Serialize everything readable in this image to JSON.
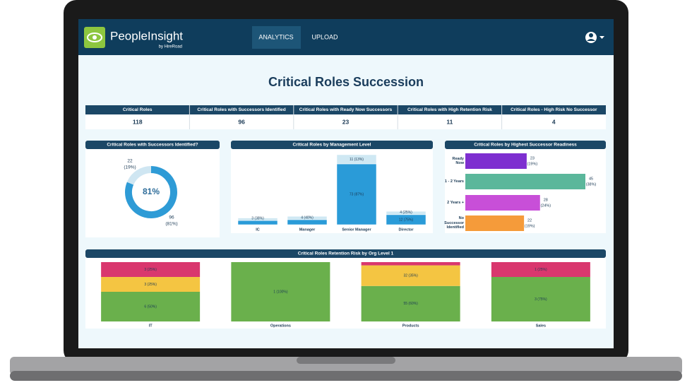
{
  "nav": {
    "brand": "PeopleInsight",
    "brand_sub": "by HireRoad",
    "tabs": [
      "ANALYTICS",
      "UPLOAD"
    ]
  },
  "title": "Critical Roles Succession",
  "kpis": [
    {
      "label": "Critical Roles",
      "value": 118
    },
    {
      "label": "Critical Roles with Successors Identified",
      "value": 96
    },
    {
      "label": "Critical Roles with Ready Now Successors",
      "value": 23
    },
    {
      "label": "Critical Roles with High Retention Risk",
      "value": 11
    },
    {
      "label": "Critical Roles - High Risk No Successor",
      "value": 4
    }
  ],
  "charts": [
    {
      "type": "donut",
      "title": "Critical Roles with Successors Identified?",
      "center_label": "81%",
      "values": [
        96,
        22
      ],
      "percent_labels": [
        "(81%)",
        "(19%)"
      ],
      "colors": [
        "#2e9bd6",
        "#cfe6f2"
      ]
    },
    {
      "type": "stacked-bar",
      "title": "Critical Roles by Management Level",
      "categories": [
        "IC",
        "Manager",
        "Senior Manager",
        "Director"
      ],
      "series": [
        {
          "color": "#2a9bd8",
          "values": [
            5,
            6,
            73,
            12
          ],
          "value_labels": [
            null,
            null,
            "73 (87%)",
            "12 (75%)"
          ]
        },
        {
          "color": "#cfe8f3",
          "values": [
            3,
            4,
            11,
            4
          ],
          "value_labels": [
            "3 (38%)",
            "4 (40%)",
            "11 (13%)",
            "4 (25%)"
          ]
        }
      ]
    },
    {
      "type": "hbar",
      "title": "Critical Roles by Highest Successor Readiness",
      "categories": [
        "Ready Now",
        "1 - 2 Years",
        "2 Years +",
        "No Successor Identified"
      ],
      "values": [
        23,
        45,
        28,
        22
      ],
      "percent_labels": [
        "(19%)",
        "(38%)",
        "(24%)",
        "(19%)"
      ],
      "colors": [
        "#7e2fd0",
        "#5bb79b",
        "#c84fd8",
        "#f59b3a"
      ]
    },
    {
      "type": "stacked-100",
      "title": "Critical Roles Retention Risk by Org Level 1",
      "categories": [
        "IT",
        "Operations",
        "Products",
        "Sales"
      ],
      "series": [
        {
          "color": "#6ab04c",
          "values": [
            6,
            1,
            55,
            3
          ],
          "value_labels": [
            "6 (50%)",
            "1 (100%)",
            "55 (60%)",
            "3 (75%)"
          ]
        },
        {
          "color": "#f4c542",
          "values": [
            3,
            null,
            32,
            null
          ],
          "value_labels": [
            "3 (25%)",
            null,
            "32 (35%)",
            null
          ]
        },
        {
          "color": "#d9376e",
          "values": [
            3,
            null,
            5,
            1
          ],
          "value_labels": [
            "3 (25%)",
            null,
            null,
            "1 (25%)"
          ]
        }
      ]
    }
  ]
}
